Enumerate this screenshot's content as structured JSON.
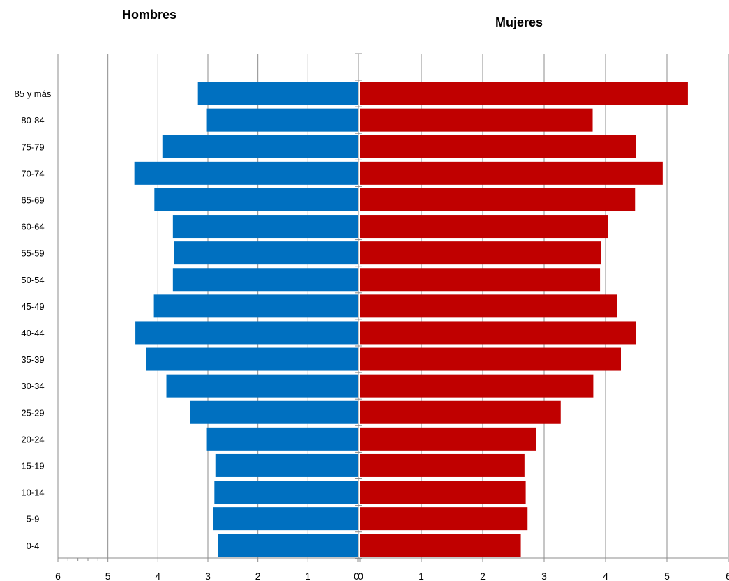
{
  "chart_data": [
    {
      "type": "bar",
      "orientation": "horizontal",
      "title": "Hombres",
      "categories": [
        "0-4",
        "5-9",
        "10-14",
        "15-19",
        "20-24",
        "25-29",
        "30-34",
        "35-39",
        "40-44",
        "45-49",
        "50-54",
        "55-59",
        "60-64",
        "65-69",
        "70-74",
        "75-79",
        "80-84",
        "85 y más"
      ],
      "values": [
        2.8,
        2.9,
        2.87,
        2.85,
        3.02,
        3.35,
        3.83,
        4.24,
        4.45,
        4.08,
        3.7,
        3.68,
        3.7,
        4.07,
        4.47,
        3.91,
        3.02,
        3.2
      ],
      "xlim": [
        0,
        6
      ],
      "x_ticks": [
        "6",
        "5",
        "4",
        "3",
        "2",
        "1",
        "0"
      ],
      "direction": "reversed",
      "color": "#0070C0",
      "grid": "vertical"
    },
    {
      "type": "bar",
      "orientation": "horizontal",
      "title": "Mujeres",
      "categories": [
        "0-4",
        "5-9",
        "10-14",
        "15-19",
        "20-24",
        "25-29",
        "30-34",
        "35-39",
        "40-44",
        "45-49",
        "50-54",
        "55-59",
        "60-64",
        "65-69",
        "70-74",
        "75-79",
        "80-84",
        "85 y más"
      ],
      "values": [
        2.62,
        2.73,
        2.7,
        2.68,
        2.87,
        3.27,
        3.8,
        4.25,
        4.49,
        4.19,
        3.91,
        3.93,
        4.04,
        4.48,
        4.93,
        4.49,
        3.79,
        5.34
      ],
      "xlim": [
        0,
        6
      ],
      "x_ticks": [
        "0",
        "1",
        "2",
        "3",
        "4",
        "5",
        "6"
      ],
      "color": "#C00000",
      "grid": "vertical"
    }
  ]
}
